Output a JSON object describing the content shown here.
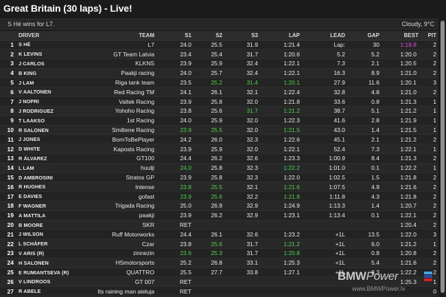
{
  "title": "Great Britain (30 laps) - Live!",
  "status_text": "S Hé wins for L7.",
  "weather": "Cloudy, 9°C",
  "colors": {
    "fastest_sector": "#4fd24f",
    "fastest_lap": "#e04fe0",
    "background": "#1b1b1b"
  },
  "columns": [
    "",
    "DRIVER",
    "TEAM",
    "S1",
    "S2",
    "S3",
    "LAP",
    "LEAD",
    "GAP",
    "BEST",
    "PIT"
  ],
  "rows": [
    {
      "pos": "1",
      "driver": "S HÉ",
      "team": "L7",
      "s1": "24.0",
      "s2": "25.5",
      "s3": "31.9",
      "lap": "1:21.4",
      "lead": "Lap:",
      "gap": "30",
      "best": "1:19.8",
      "pit": "2",
      "hl": {
        "best": "purple"
      }
    },
    {
      "pos": "2",
      "driver": "K LEVINS",
      "team": "GT Team Latvia",
      "s1": "23.4",
      "s2": "25.4",
      "s3": "31.7",
      "lap": "1:20.6",
      "lead": "5.2",
      "gap": "5.2",
      "best": "1:20.0",
      "pit": "2"
    },
    {
      "pos": "3",
      "driver": "J CARLOS",
      "team": "KLKNS",
      "s1": "23.9",
      "s2": "25.9",
      "s3": "32.4",
      "lap": "1:22.1",
      "lead": "7.3",
      "gap": "2.1",
      "best": "1:20.5",
      "pit": "2"
    },
    {
      "pos": "4",
      "driver": "B KING",
      "team": "Paakji racing",
      "s1": "24.0",
      "s2": "25.7",
      "s3": "32.4",
      "lap": "1:22.1",
      "lead": "16.3",
      "gap": "8.9",
      "best": "1:21.0",
      "pit": "2"
    },
    {
      "pos": "5",
      "driver": "J LAM",
      "team": "Riga tank team",
      "s1": "23.5",
      "s2": "25.2",
      "s3": "31.4",
      "lap": "1:20.1",
      "lead": "27.9",
      "gap": "11.6",
      "best": "1:20.1",
      "pit": "3",
      "hl": {
        "s2": "green",
        "s3": "green",
        "lap": "green"
      }
    },
    {
      "pos": "6",
      "driver": "V AALTONEN",
      "team": "Red Racing TM",
      "s1": "24.1",
      "s2": "26.1",
      "s3": "32.1",
      "lap": "1:22.4",
      "lead": "32.8",
      "gap": "4.8",
      "best": "1:21.0",
      "pit": "2"
    },
    {
      "pos": "7",
      "driver": "J NOPRI",
      "team": "Valtek Racing",
      "s1": "23.9",
      "s2": "25.8",
      "s3": "32.0",
      "lap": "1:21.8",
      "lead": "33.6",
      "gap": "0.8",
      "best": "1:21.3",
      "pit": "1"
    },
    {
      "pos": "8",
      "driver": "J RODRIGUEZ",
      "team": "Yohoho Racing",
      "s1": "23.8",
      "s2": "25.6",
      "s3": "31.7",
      "lap": "1:21.2",
      "lead": "38.7",
      "gap": "5.1",
      "best": "1:21.2",
      "pit": "1",
      "hl": {
        "s3": "green",
        "lap": "green"
      }
    },
    {
      "pos": "9",
      "driver": "T LAAKSO",
      "team": "1st Racing",
      "s1": "24.0",
      "s2": "25.9",
      "s3": "32.0",
      "lap": "1:22.3",
      "lead": "41.6",
      "gap": "2.8",
      "best": "1:21.9",
      "pit": "1"
    },
    {
      "pos": "10",
      "driver": "R SALONEN",
      "team": "Smiltene Racing",
      "s1": "23.9",
      "s2": "25.5",
      "s3": "32.0",
      "lap": "1:21.5",
      "lead": "43.0",
      "gap": "1.4",
      "best": "1:21.5",
      "pit": "1",
      "hl": {
        "s1": "green",
        "s2": "green",
        "lap": "green"
      }
    },
    {
      "pos": "11",
      "driver": "J JONES",
      "team": "BornToBePlayer",
      "s1": "24.2",
      "s2": "26.0",
      "s3": "32.3",
      "lap": "1:22.6",
      "lead": "45.1",
      "gap": "2.1",
      "best": "1:21.2",
      "pit": "2"
    },
    {
      "pos": "12",
      "driver": "D WHITE",
      "team": "Kaposts Racing",
      "s1": "23.9",
      "s2": "25.9",
      "s3": "32.0",
      "lap": "1:22.1",
      "lead": "52.4",
      "gap": "7.3",
      "best": "1:22.1",
      "pit": "1"
    },
    {
      "pos": "13",
      "driver": "R ÁLVAREZ",
      "team": "GT100",
      "s1": "24.4",
      "s2": "26.2",
      "s3": "32.6",
      "lap": "1:23.3",
      "lead": "1:00.9",
      "gap": "8.4",
      "best": "1:21.3",
      "pit": "2"
    },
    {
      "pos": "14",
      "driver": "L LAM",
      "team": "huulji",
      "s1": "24.0",
      "s2": "25.8",
      "s3": "32.3",
      "lap": "1:22.2",
      "lead": "1:01.0",
      "gap": "0.1",
      "best": "1:22.2",
      "pit": "1",
      "hl": {
        "s1": "green",
        "lap": "green"
      }
    },
    {
      "pos": "15",
      "driver": "D AMBROSINI",
      "team": "Stratos GP",
      "s1": "23.9",
      "s2": "25.8",
      "s3": "32.3",
      "lap": "1:22.0",
      "lead": "1:02.5",
      "gap": "1.5",
      "best": "1:21.8",
      "pit": "2"
    },
    {
      "pos": "16",
      "driver": "R HUGHES",
      "team": "Intense",
      "s1": "23.8",
      "s2": "25.5",
      "s3": "32.1",
      "lap": "1:21.6",
      "lead": "1:07.5",
      "gap": "4.9",
      "best": "1:21.6",
      "pit": "2",
      "hl": {
        "s1": "green",
        "s2": "green",
        "lap": "green"
      }
    },
    {
      "pos": "17",
      "driver": "E DAVIES",
      "team": "gofast",
      "s1": "23.9",
      "s2": "25.6",
      "s3": "32.2",
      "lap": "1:21.8",
      "lead": "1:11.8",
      "gap": "4.3",
      "best": "1:21.8",
      "pit": "2",
      "hl": {
        "s1": "green",
        "s2": "green",
        "lap": "green"
      }
    },
    {
      "pos": "18",
      "driver": "F WAGNER",
      "team": "Trigada Racing",
      "s1": "25.0",
      "s2": "26.9",
      "s3": "32.9",
      "lap": "1:24.9",
      "lead": "1:13.3",
      "gap": "1.4",
      "best": "1:20.7",
      "pit": "2"
    },
    {
      "pos": "19",
      "driver": "A MATTILA",
      "team": "paakji",
      "s1": "23.9",
      "s2": "26.2",
      "s3": "32.9",
      "lap": "1:23.1",
      "lead": "1:13.4",
      "gap": "0.1",
      "best": "1:22.1",
      "pit": "2"
    },
    {
      "pos": "20",
      "driver": "B MOORE",
      "team": "SKR",
      "s1": "RET",
      "s2": "",
      "s3": "",
      "lap": "",
      "lead": "",
      "gap": "",
      "best": "1:20.4",
      "pit": "2"
    },
    {
      "pos": "21",
      "driver": "J WILSON",
      "team": "Ruff Motorworks",
      "s1": "24.4",
      "s2": "26.1",
      "s3": "32.6",
      "lap": "1:23.2",
      "lead": "+1L",
      "gap": "13.5",
      "best": "1:22.0",
      "pit": "3"
    },
    {
      "pos": "22",
      "driver": "L SCHÄFER",
      "team": "Czar",
      "s1": "23.8",
      "s2": "25.6",
      "s3": "31.7",
      "lap": "1:21.2",
      "lead": "+1L",
      "gap": "6.0",
      "best": "1:21.2",
      "pit": "1",
      "hl": {
        "s2": "green",
        "lap": "green"
      }
    },
    {
      "pos": "23",
      "driver": "V ARIS (R)",
      "team": "zinnezin",
      "s1": "23.6",
      "s2": "25.3",
      "s3": "31.7",
      "lap": "1:20.8",
      "lead": "+1L",
      "gap": "0.8",
      "best": "1:20.8",
      "pit": "2",
      "hl": {
        "s1": "green",
        "s2": "green",
        "lap": "green"
      }
    },
    {
      "pos": "24",
      "driver": "H SALONEN",
      "team": "HSmotorsports",
      "s1": "25.2",
      "s2": "26.8",
      "s3": "33.1",
      "lap": "1:25.3",
      "lead": "+1L",
      "gap": "5.4",
      "best": "1:21.6",
      "pit": "2"
    },
    {
      "pos": "25",
      "driver": "E RUMIANTSEVA (R)",
      "team": "QUATTRO",
      "s1": "25.5",
      "s2": "27.7",
      "s3": "33.8",
      "lap": "1:27.1",
      "lead": "+1L",
      "gap": "8.3",
      "best": "1:22.2",
      "pit": "2"
    },
    {
      "pos": "26",
      "driver": "V LINDROOS",
      "team": "GT 007",
      "s1": "RET",
      "s2": "",
      "s3": "",
      "lap": "",
      "lead": "",
      "gap": "",
      "best": "1:25.3",
      "pit": "1"
    },
    {
      "pos": "27",
      "driver": "R ABELE",
      "team": "Its raining man aleluja",
      "s1": "RET",
      "s2": "",
      "s3": "",
      "lap": "",
      "lead": "",
      "gap": "",
      "best": "",
      "pit": "0"
    }
  ],
  "watermark": {
    "logo_main": "BMW",
    "logo_sub": "Power",
    "url": "www.BMWPower.lv"
  }
}
